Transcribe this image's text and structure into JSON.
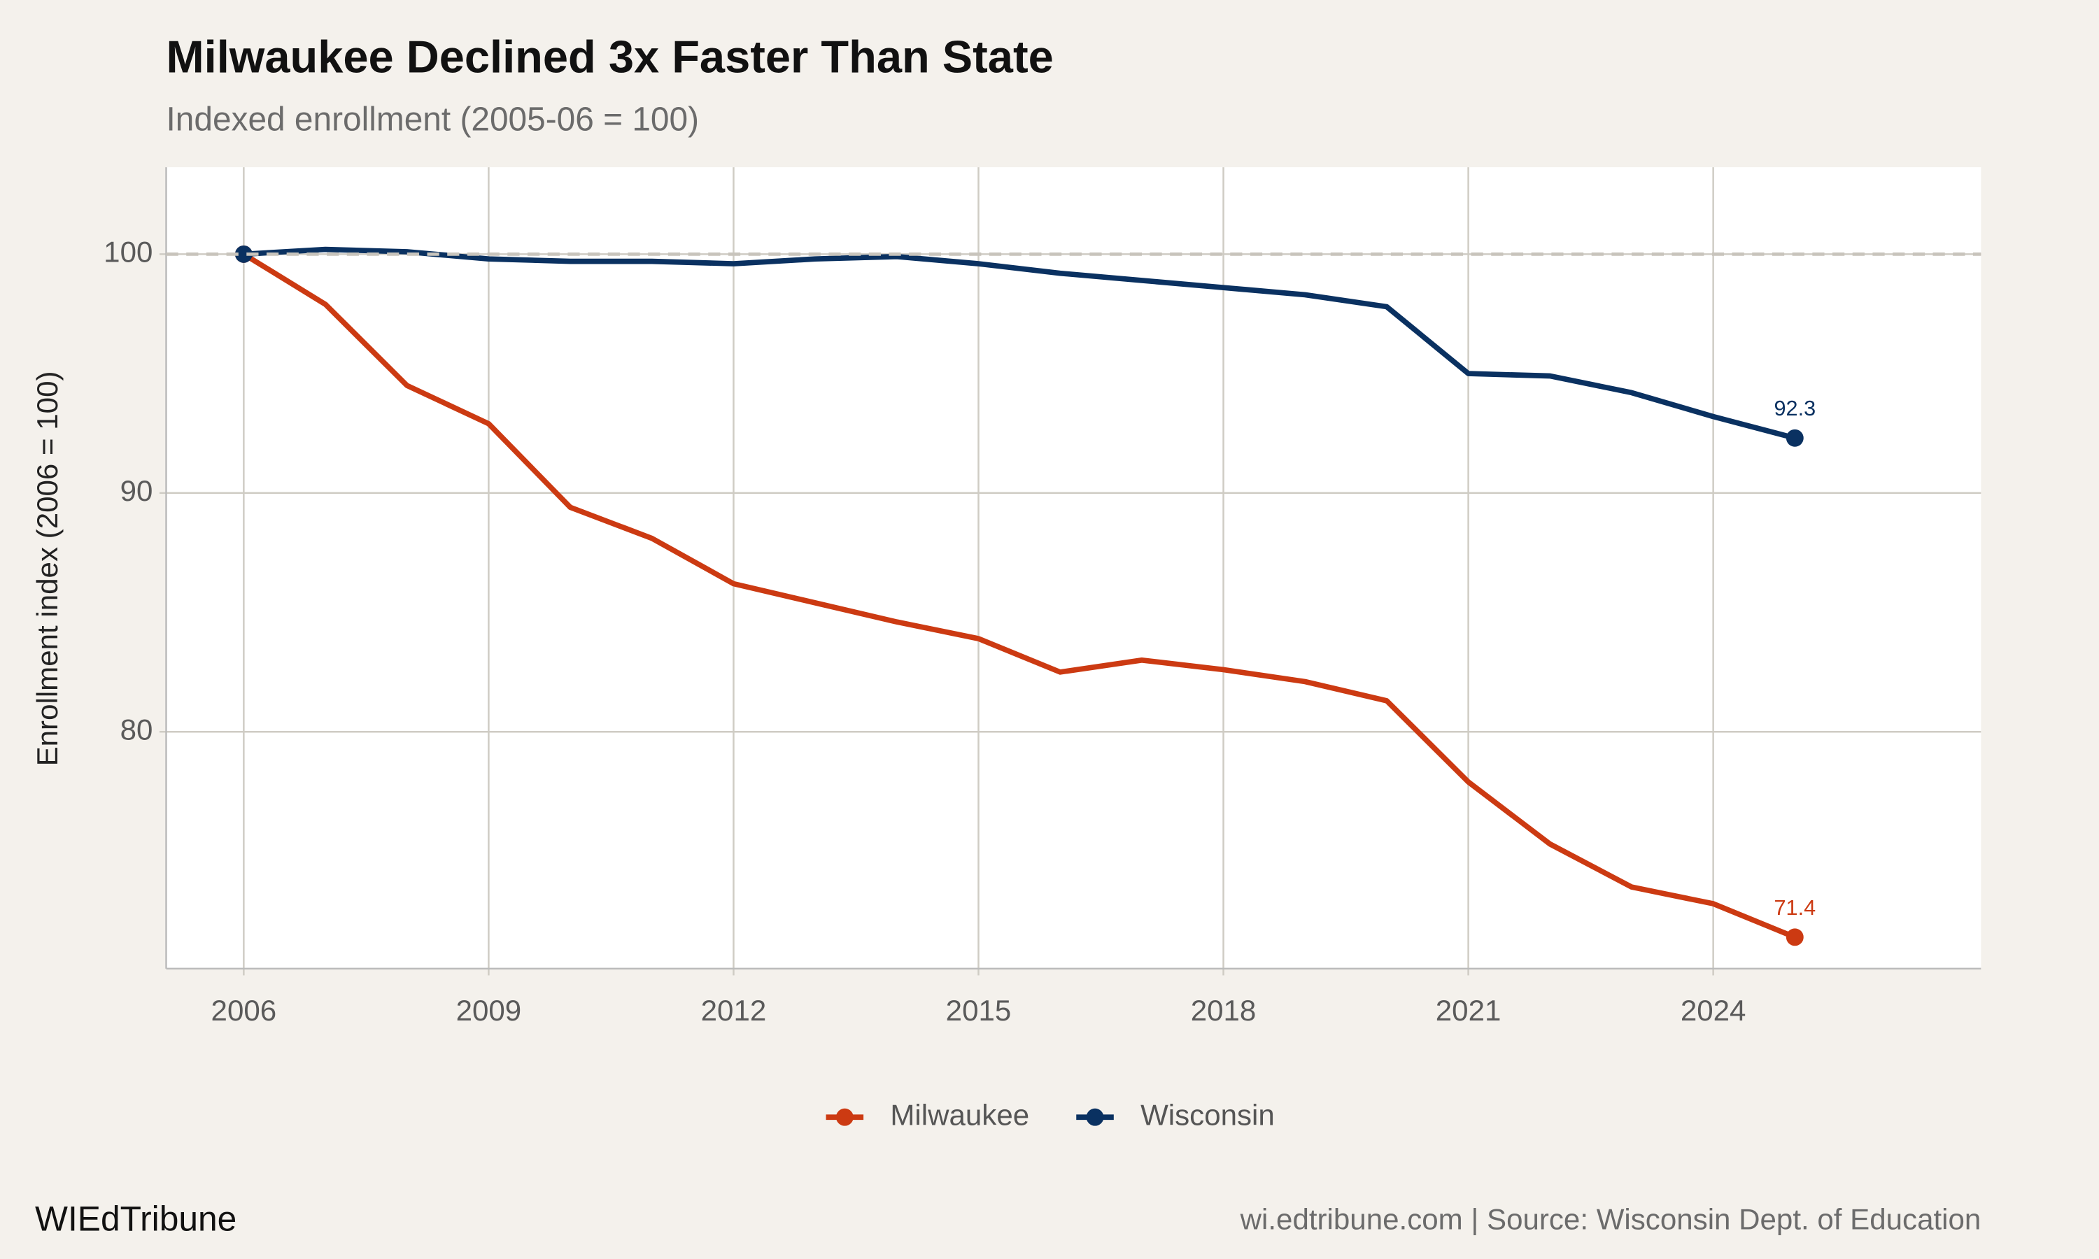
{
  "chart_data": {
    "type": "line",
    "title": "Milwaukee Declined 3x Faster Than State",
    "subtitle": "Indexed enrollment (2005-06 = 100)",
    "y_label": "Enrollment index (2006 = 100)",
    "x": [
      2006,
      2007,
      2008,
      2009,
      2010,
      2011,
      2012,
      2013,
      2014,
      2015,
      2016,
      2017,
      2018,
      2019,
      2020,
      2021,
      2022,
      2023,
      2024,
      2025
    ],
    "series": [
      {
        "name": "Milwaukee",
        "color": "#cc3a12",
        "values": [
          100,
          97.9,
          94.5,
          92.9,
          89.4,
          88.1,
          86.2,
          85.4,
          84.6,
          83.9,
          82.5,
          83.0,
          82.6,
          82.1,
          81.3,
          77.9,
          75.3,
          73.5,
          72.8,
          71.4
        ]
      },
      {
        "name": "Wisconsin",
        "color": "#0a3161",
        "values": [
          100,
          100.2,
          100.1,
          99.8,
          99.7,
          99.7,
          99.6,
          99.8,
          99.9,
          99.6,
          99.2,
          98.9,
          98.6,
          98.3,
          97.8,
          95.0,
          94.9,
          94.2,
          93.2,
          92.3
        ]
      }
    ],
    "xlim": [
      2005.05,
      2027.28
    ],
    "xticks": [
      2006,
      2009,
      2012,
      2015,
      2018,
      2021,
      2024
    ],
    "ylim": [
      70.08,
      103.64
    ],
    "yticks": [
      80,
      90,
      100
    ],
    "reference_line": 100,
    "grid": true,
    "legend": "bottom",
    "brand": "WIEdTribune",
    "source": "wi.edtribune.com | Source: Wisconsin Dept. of Education"
  }
}
